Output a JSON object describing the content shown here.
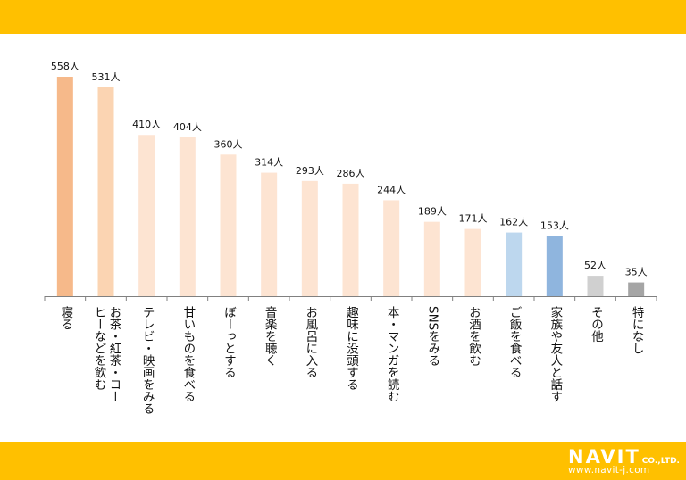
{
  "colors": {
    "band": "#ffc000",
    "axis": "#808080"
  },
  "logo": {
    "brand": "NAVIT",
    "suffix": "CO.,LTD.",
    "url": "www.navit-j.com"
  },
  "chart_data": {
    "type": "bar",
    "categories": [
      [
        "寝る"
      ],
      [
        "お茶・紅茶・コー",
        "ヒーなどを飲む"
      ],
      [
        "テレビ・映画をみる"
      ],
      [
        "甘いものを食べる"
      ],
      [
        "ぼーっとする"
      ],
      [
        "音楽を聴く"
      ],
      [
        "お風呂に入る"
      ],
      [
        "趣味に没頭する"
      ],
      [
        "本・マンガを読む"
      ],
      [
        "SNSをみる"
      ],
      [
        "お酒を飲む"
      ],
      [
        "ご飯を食べる"
      ],
      [
        "家族や友人と話す"
      ],
      [
        "その他"
      ],
      [
        "特になし"
      ]
    ],
    "values": [
      558,
      531,
      410,
      404,
      360,
      314,
      293,
      286,
      244,
      189,
      171,
      162,
      153,
      52,
      35
    ],
    "data_labels": [
      "558人",
      "531人",
      "410人",
      "404人",
      "360人",
      "314人",
      "293人",
      "286人",
      "244人",
      "189人",
      "171人",
      "162人",
      "153人",
      "52人",
      "35人"
    ],
    "bar_colors": [
      "#f6b98a",
      "#fbd4b2",
      "#fde4d2",
      "#fde4d2",
      "#fde4d2",
      "#fde4d2",
      "#fde4d2",
      "#fde4d2",
      "#fde4d2",
      "#fde4d2",
      "#fde4d2",
      "#bdd7ee",
      "#8fb5de",
      "#d0d0d0",
      "#a5a5a5"
    ],
    "ylim": [
      0,
      558
    ],
    "grid": false,
    "title": "",
    "xlabel": "",
    "ylabel": ""
  }
}
